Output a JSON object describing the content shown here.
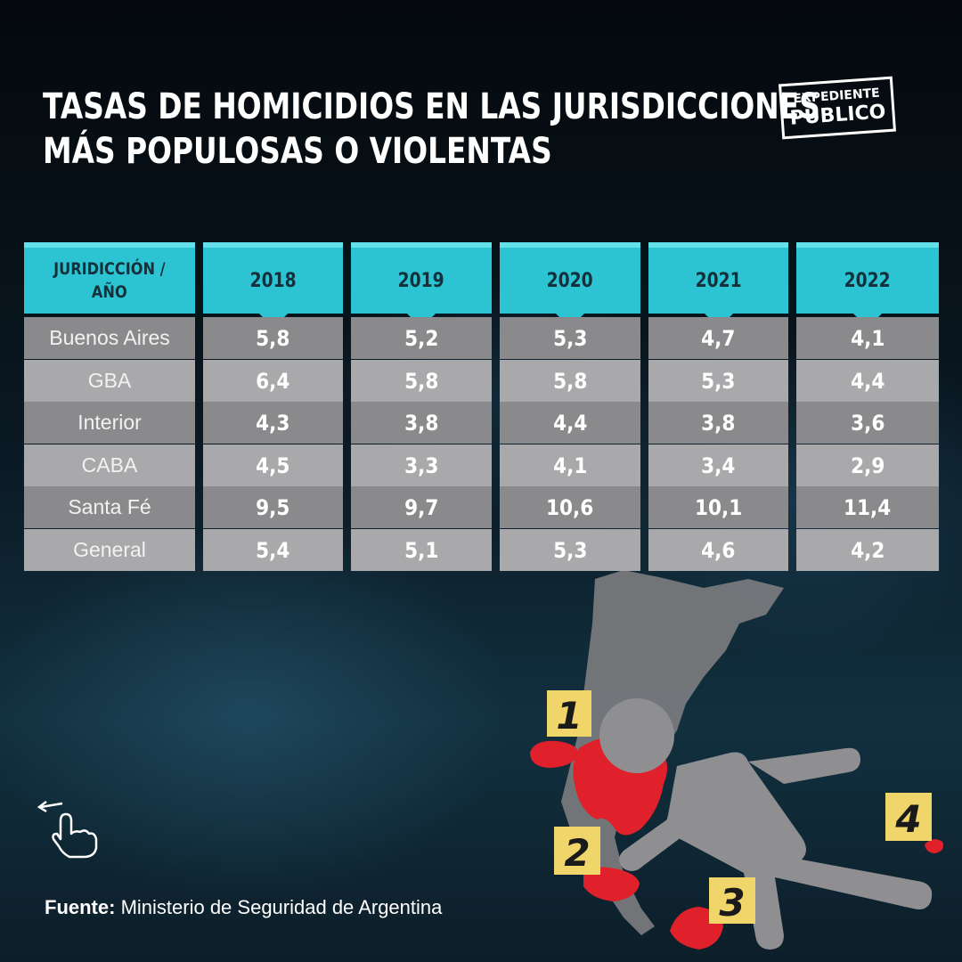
{
  "title": {
    "line1": "TASAS DE HOMICIDIOS EN LAS JURISDICCIONES",
    "line2": "MÁS POPULOSAS O VIOLENTAS"
  },
  "logo": {
    "line1": "EXPEDIENTE",
    "line2": "PÚBLICO"
  },
  "chart_data": {
    "type": "table",
    "title": "TASAS DE HOMICIDIOS EN LAS JURISDICCIONES MÁS POPULOSAS O VIOLENTAS",
    "header_label": [
      "JURIDICCIÓN /",
      "AÑO"
    ],
    "columns": [
      "2018",
      "2019",
      "2020",
      "2021",
      "2022"
    ],
    "rows": [
      {
        "name": "Buenos Aires",
        "values": [
          "5,8",
          "5,2",
          "5,3",
          "4,7",
          "4,1"
        ]
      },
      {
        "name": "GBA",
        "values": [
          "6,4",
          "5,8",
          "5,8",
          "5,3",
          "4,4"
        ]
      },
      {
        "name": "Interior",
        "values": [
          "4,3",
          "3,8",
          "4,4",
          "3,8",
          "3,6"
        ]
      },
      {
        "name": "CABA",
        "values": [
          "4,5",
          "3,3",
          "4,1",
          "3,4",
          "2,9"
        ]
      },
      {
        "name": "Santa Fé",
        "values": [
          "9,5",
          "9,7",
          "10,6",
          "10,1",
          "11,4"
        ]
      },
      {
        "name": "General",
        "values": [
          "5,4",
          "5,1",
          "5,3",
          "4,6",
          "4,2"
        ]
      }
    ]
  },
  "markers": [
    "1",
    "2",
    "3",
    "4"
  ],
  "colors": {
    "header": "#2cc4d2",
    "header_top": "#63e0ea",
    "row_dark": "#8a8a8c",
    "row_light": "#a9a9ab",
    "blood": "#e0202a",
    "marker": "#f0d66a"
  },
  "source": {
    "label": "Fuente:",
    "text": "Ministerio de Seguridad de Argentina"
  }
}
